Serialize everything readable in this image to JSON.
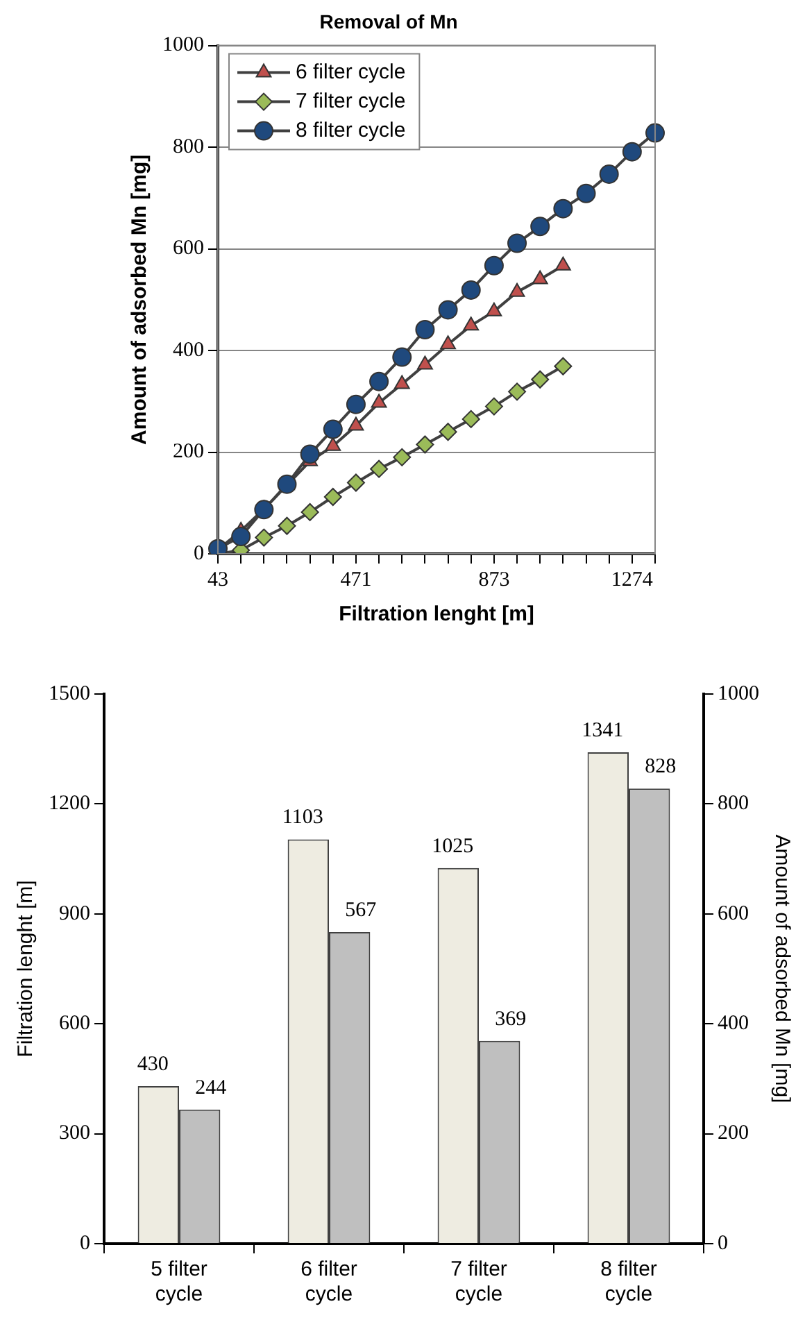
{
  "chart_data": [
    {
      "type": "line",
      "title": "Removal of Mn",
      "xlabel": "Filtration lenght [m]",
      "ylabel": "Amount of adsorbed Mn [mg]",
      "categories": [
        "43",
        null,
        null,
        null,
        null,
        null,
        "471",
        null,
        null,
        null,
        null,
        null,
        "873",
        null,
        null,
        null,
        null,
        null,
        "1274",
        null
      ],
      "ylim": [
        0,
        1000
      ],
      "yticks": [
        0,
        200,
        400,
        600,
        800,
        1000
      ],
      "grid": "y",
      "legend": "top left",
      "series": [
        {
          "name": "6 filter cycle",
          "color": "#c0504d",
          "marker": "triangle",
          "values": [
            8,
            45,
            88,
            135,
            182,
            212,
            252,
            297,
            334,
            372,
            412,
            449,
            477,
            515,
            540,
            567,
            null,
            null,
            null,
            null
          ]
        },
        {
          "name": "7 filter cycle",
          "color": "#9bbb59",
          "marker": "diamond",
          "values": [
            0,
            7,
            32,
            55,
            82,
            112,
            140,
            167,
            190,
            215,
            240,
            265,
            290,
            319,
            343,
            369,
            null,
            null,
            null,
            null
          ]
        },
        {
          "name": "8 filter cycle",
          "color": "#1f497d",
          "marker": "circle",
          "values": [
            10,
            34,
            87,
            137,
            196,
            245,
            294,
            339,
            387,
            441,
            480,
            519,
            567,
            611,
            644,
            679,
            709,
            747,
            791,
            828
          ]
        }
      ]
    },
    {
      "type": "bar",
      "ylabel": "Filtration lenght [m]",
      "y2label": "Amount of adsorbed Mn [mg]",
      "categories": [
        "5 filter cycle",
        "6 filter cycle",
        "7 filter cycle",
        "8 filter cycle"
      ],
      "ylim": [
        0,
        1500
      ],
      "yticks": [
        0,
        300,
        600,
        900,
        1200,
        1500
      ],
      "y2lim": [
        0,
        1000
      ],
      "y2ticks": [
        0,
        200,
        400,
        600,
        800,
        1000
      ],
      "data_labels": true,
      "series": [
        {
          "color": "#eeece1",
          "values": [
            430,
            1103,
            1025,
            1341
          ]
        },
        {
          "color": "#bfbfbf",
          "axis": "y2",
          "values": [
            244,
            567,
            369,
            828
          ]
        }
      ]
    }
  ]
}
